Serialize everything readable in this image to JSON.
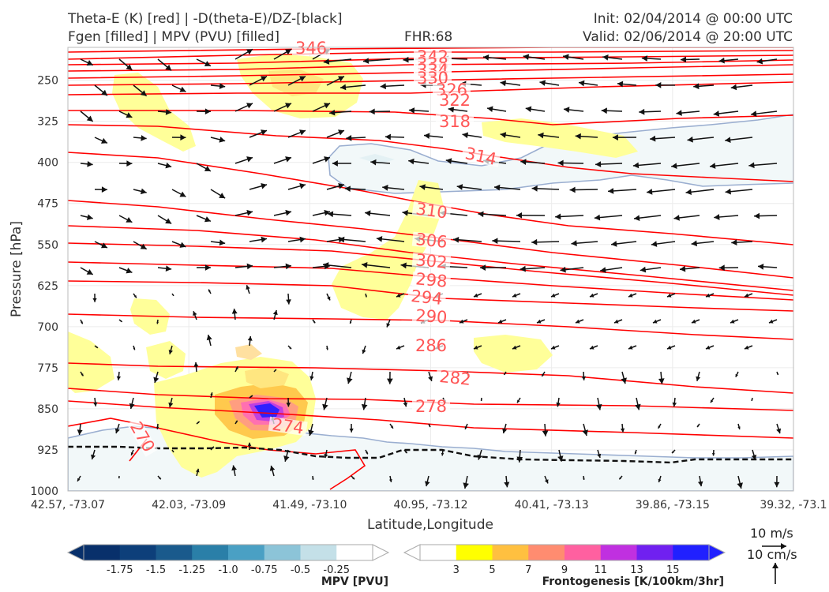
{
  "header": {
    "title_left_1": "Theta-E (K) [red] | -D(theta-E)/DZ-[black]",
    "title_left_2": "Fgen [filled] | MPV (PVU) [filled]",
    "fhr": "FHR:68",
    "init": "Init: 02/04/2014 @ 00:00 UTC",
    "valid": "Valid: 02/06/2014 @ 20:00 UTC"
  },
  "chart_data": {
    "type": "contour_cross_section",
    "xlabel": "Latitude,Longitude",
    "ylabel": "Pressure [hPa]",
    "x_ticks": [
      "42.57, -73.07",
      "42.03, -73.09",
      "41.49, -73.10",
      "40.95, -73.12",
      "40.41, -73.13",
      "39.86, -73.15",
      "39.32, -73.1"
    ],
    "y_ticks": [
      250,
      325,
      400,
      475,
      550,
      625,
      700,
      775,
      850,
      925,
      1000
    ],
    "ylim": [
      1000,
      190
    ],
    "grid": true,
    "theta_e_color": "#ff0000",
    "theta_e_contours": [
      {
        "value": 346,
        "label": "346"
      },
      {
        "value": 342,
        "label": "342"
      },
      {
        "value": 338,
        "label": "338"
      },
      {
        "value": 334,
        "label": "334"
      },
      {
        "value": 330,
        "label": "330"
      },
      {
        "value": 326,
        "label": "326"
      },
      {
        "value": 322,
        "label": "322"
      },
      {
        "value": 318,
        "label": "318"
      },
      {
        "value": 314,
        "label": "314"
      },
      {
        "value": 310,
        "label": "310"
      },
      {
        "value": 306,
        "label": "306"
      },
      {
        "value": 302,
        "label": "302"
      },
      {
        "value": 298,
        "label": "298"
      },
      {
        "value": 294,
        "label": "294"
      },
      {
        "value": 290,
        "label": "290"
      },
      {
        "value": 286,
        "label": "286"
      },
      {
        "value": 282,
        "label": "282"
      },
      {
        "value": 278,
        "label": "278"
      },
      {
        "value": 274,
        "label": "274"
      },
      {
        "value": 270,
        "label": "270"
      }
    ],
    "reference_vectors": {
      "horizontal": "10 m/s",
      "vertical": "10 cm/s"
    }
  },
  "colorbars": {
    "mpv": {
      "title": "MPV [PVU]",
      "ticks": [
        "-1.75",
        "-1.5",
        "-1.25",
        "-1.0",
        "-0.75",
        "-0.5",
        "-0.25"
      ],
      "colors": [
        "#08306b",
        "#0d3f7a",
        "#1a5a8c",
        "#2a7fa8",
        "#4aa0c4",
        "#8cc4d8",
        "#c4e0e8",
        "#ffffff"
      ]
    },
    "fgen": {
      "title": "Frontogenesis [K/100km/3hr]",
      "ticks": [
        "3",
        "5",
        "7",
        "9",
        "11",
        "13",
        "15"
      ],
      "colors": [
        "#ffffff",
        "#ffff00",
        "#ffc040",
        "#ff8c70",
        "#ff60a0",
        "#c030e0",
        "#7020f0",
        "#2020ff"
      ]
    }
  }
}
